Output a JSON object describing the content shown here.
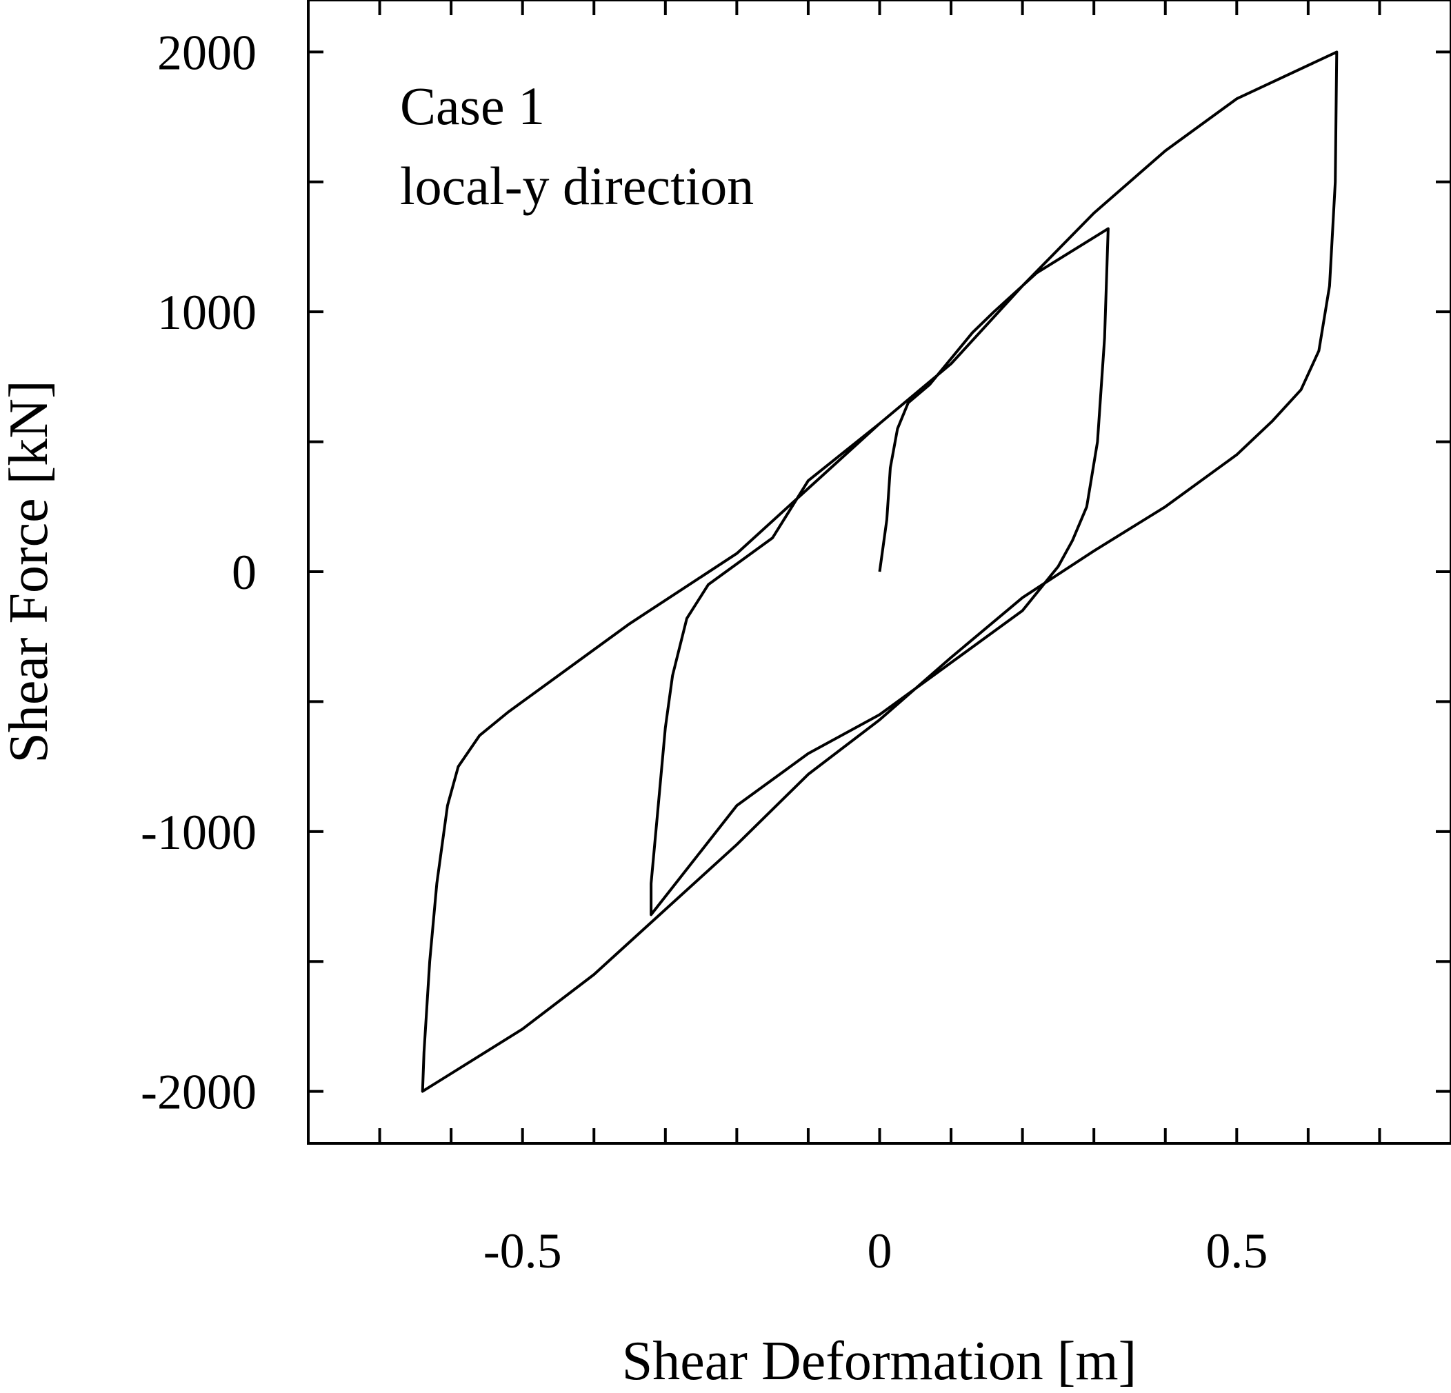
{
  "chart_data": {
    "type": "line",
    "title": "",
    "xlabel": "Shear Deformation [m]",
    "ylabel": "Shear Force [kN]",
    "xlim": [
      -0.8,
      0.8
    ],
    "ylim": [
      -2200,
      2200
    ],
    "grid": false,
    "legend": "none",
    "annotations": [
      "Case 1",
      "local-y direction"
    ],
    "x_tick_labels": [
      {
        "value": -0.5,
        "label": "-0.5"
      },
      {
        "value": 0,
        "label": "0"
      },
      {
        "value": 0.5,
        "label": "0.5"
      }
    ],
    "y_tick_labels": [
      {
        "value": -2000,
        "label": "-2000"
      },
      {
        "value": -1000,
        "label": "-1000"
      },
      {
        "value": 0,
        "label": "0"
      },
      {
        "value": 1000,
        "label": "1000"
      },
      {
        "value": 2000,
        "label": "2000"
      }
    ],
    "x_minor_ticks": [
      -0.7,
      -0.6,
      -0.5,
      -0.4,
      -0.3,
      -0.2,
      -0.1,
      0,
      0.1,
      0.2,
      0.3,
      0.4,
      0.5,
      0.6,
      0.7
    ],
    "y_minor_ticks": [
      -2000,
      -1500,
      -1000,
      -500,
      0,
      500,
      1000,
      1500,
      2000
    ],
    "series": [
      {
        "values_xy": [
          [
            0.0,
            0
          ],
          [
            0.01,
            200
          ],
          [
            0.015,
            400
          ],
          [
            0.025,
            550
          ],
          [
            0.04,
            650
          ],
          [
            0.07,
            720
          ],
          [
            0.1,
            820
          ],
          [
            0.13,
            920
          ],
          [
            0.16,
            1000
          ],
          [
            0.22,
            1150
          ],
          [
            0.32,
            1320
          ],
          [
            0.315,
            900
          ],
          [
            0.305,
            500
          ],
          [
            0.29,
            250
          ],
          [
            0.27,
            120
          ],
          [
            0.25,
            20
          ],
          [
            0.2,
            -150
          ],
          [
            0.1,
            -350
          ],
          [
            0.0,
            -550
          ],
          [
            -0.1,
            -700
          ],
          [
            -0.2,
            -900
          ],
          [
            -0.32,
            -1320
          ],
          [
            -0.32,
            -1200
          ],
          [
            -0.31,
            -900
          ],
          [
            -0.3,
            -600
          ],
          [
            -0.29,
            -400
          ],
          [
            -0.27,
            -180
          ],
          [
            -0.24,
            -50
          ],
          [
            -0.15,
            130
          ],
          [
            -0.1,
            350
          ],
          [
            0.0,
            570
          ],
          [
            0.1,
            800
          ],
          [
            0.2,
            1100
          ],
          [
            0.3,
            1380
          ],
          [
            0.4,
            1620
          ],
          [
            0.5,
            1820
          ],
          [
            0.64,
            2000
          ],
          [
            0.638,
            1500
          ],
          [
            0.63,
            1100
          ],
          [
            0.615,
            850
          ],
          [
            0.59,
            700
          ],
          [
            0.55,
            580
          ],
          [
            0.5,
            450
          ],
          [
            0.4,
            250
          ],
          [
            0.3,
            80
          ],
          [
            0.2,
            -100
          ],
          [
            0.1,
            -330
          ],
          [
            0.0,
            -570
          ],
          [
            -0.1,
            -780
          ],
          [
            -0.2,
            -1050
          ],
          [
            -0.3,
            -1300
          ],
          [
            -0.4,
            -1550
          ],
          [
            -0.5,
            -1760
          ],
          [
            -0.64,
            -2000
          ],
          [
            -0.638,
            -1850
          ],
          [
            -0.63,
            -1500
          ],
          [
            -0.62,
            -1200
          ],
          [
            -0.605,
            -900
          ],
          [
            -0.59,
            -750
          ],
          [
            -0.56,
            -630
          ],
          [
            -0.52,
            -540
          ],
          [
            -0.45,
            -400
          ],
          [
            -0.35,
            -200
          ],
          [
            -0.2,
            70
          ],
          [
            -0.1,
            320
          ],
          [
            0.0,
            570
          ]
        ]
      }
    ]
  }
}
